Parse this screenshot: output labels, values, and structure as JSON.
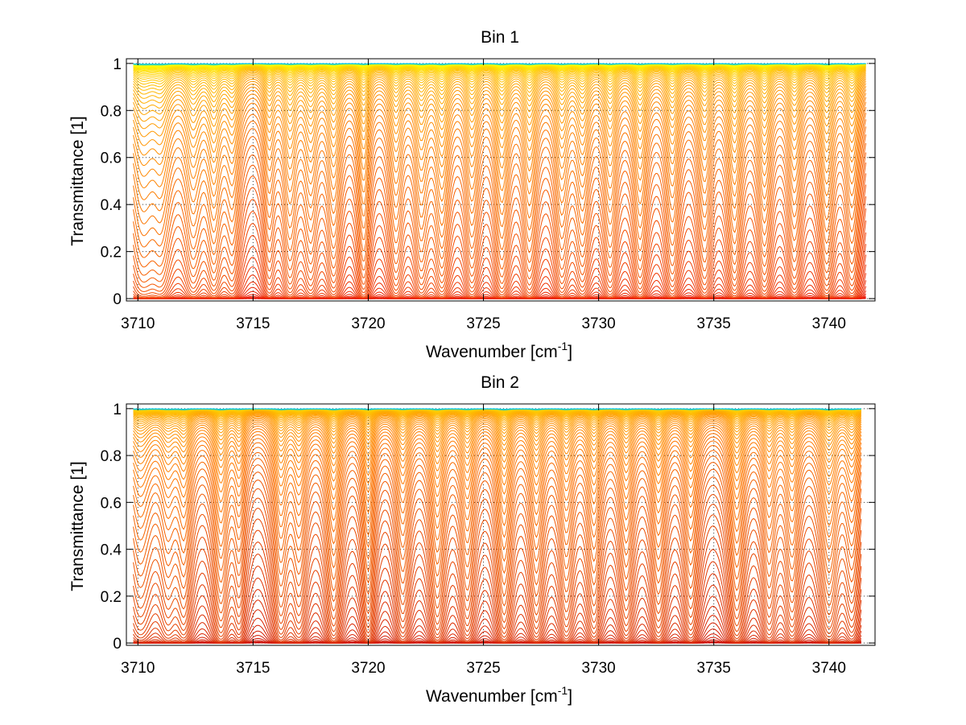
{
  "chart_data": [
    {
      "type": "line",
      "title": "Bin 1",
      "xlabel": "Wavenumber [cm",
      "xlabel_sup": "-1",
      "xlabel_end": "]",
      "ylabel": "Transmittance [1]",
      "xlim": [
        3709.5,
        3742
      ],
      "ylim": [
        -0.01,
        1.02
      ],
      "data_xrange": [
        3709.8,
        3741.6
      ],
      "xticks": [
        3710,
        3715,
        3720,
        3725,
        3730,
        3735,
        3740
      ],
      "xtick_labels": [
        "3710",
        "3715",
        "3720",
        "3725",
        "3730",
        "3735",
        "3740"
      ],
      "yticks": [
        0,
        0.2,
        0.4,
        0.6,
        0.8,
        1
      ],
      "ytick_labels": [
        "0",
        "0.2",
        "0.4",
        "0.6",
        "0.8",
        "1"
      ],
      "grid": true,
      "n_series": 70,
      "colormap": "autumn-to-cyan",
      "colors": {
        "low_transmittance": "#e60000",
        "mid": "#ff8c00",
        "high": "#ffff00",
        "saturated": "#00c8e6"
      },
      "absorption_lines": [
        {
          "x": 3710.2,
          "strength": 0.9,
          "width": 0.55
        },
        {
          "x": 3711.0,
          "strength": 0.7,
          "width": 0.4
        },
        {
          "x": 3712.4,
          "strength": 0.75,
          "width": 0.35
        },
        {
          "x": 3713.3,
          "strength": 0.8,
          "width": 0.3
        },
        {
          "x": 3714.1,
          "strength": 0.6,
          "width": 0.3
        },
        {
          "x": 3715.7,
          "strength": 0.5,
          "width": 0.25
        },
        {
          "x": 3716.6,
          "strength": 0.7,
          "width": 0.3
        },
        {
          "x": 3717.5,
          "strength": 0.6,
          "width": 0.3
        },
        {
          "x": 3718.5,
          "strength": 0.7,
          "width": 0.3
        },
        {
          "x": 3719.8,
          "strength": 0.75,
          "width": 0.25
        },
        {
          "x": 3721.2,
          "strength": 0.65,
          "width": 0.3
        },
        {
          "x": 3722.3,
          "strength": 0.7,
          "width": 0.3
        },
        {
          "x": 3723.2,
          "strength": 0.8,
          "width": 0.3
        },
        {
          "x": 3724.5,
          "strength": 0.7,
          "width": 0.3
        },
        {
          "x": 3725.8,
          "strength": 0.85,
          "width": 0.3
        },
        {
          "x": 3727.0,
          "strength": 0.75,
          "width": 0.3
        },
        {
          "x": 3728.4,
          "strength": 0.7,
          "width": 0.3
        },
        {
          "x": 3729.3,
          "strength": 0.65,
          "width": 0.3
        },
        {
          "x": 3730.5,
          "strength": 0.7,
          "width": 0.3
        },
        {
          "x": 3731.8,
          "strength": 0.75,
          "width": 0.3
        },
        {
          "x": 3733.2,
          "strength": 0.7,
          "width": 0.3
        },
        {
          "x": 3734.6,
          "strength": 0.65,
          "width": 0.3
        },
        {
          "x": 3735.9,
          "strength": 0.8,
          "width": 0.3
        },
        {
          "x": 3737.2,
          "strength": 0.7,
          "width": 0.3
        },
        {
          "x": 3738.5,
          "strength": 0.65,
          "width": 0.3
        },
        {
          "x": 3739.9,
          "strength": 0.8,
          "width": 0.3
        },
        {
          "x": 3741.0,
          "strength": 0.7,
          "width": 0.3
        }
      ]
    },
    {
      "type": "line",
      "title": "Bin 2",
      "xlabel": "Wavenumber [cm",
      "xlabel_sup": "-1",
      "xlabel_end": "]",
      "ylabel": "Transmittance [1]",
      "xlim": [
        3709.5,
        3742
      ],
      "ylim": [
        -0.01,
        1.02
      ],
      "data_xrange": [
        3709.8,
        3741.4
      ],
      "xticks": [
        3710,
        3715,
        3720,
        3725,
        3730,
        3735,
        3740
      ],
      "xtick_labels": [
        "3710",
        "3715",
        "3720",
        "3725",
        "3730",
        "3735",
        "3740"
      ],
      "yticks": [
        0,
        0.2,
        0.4,
        0.6,
        0.8,
        1
      ],
      "ytick_labels": [
        "0",
        "0.2",
        "0.4",
        "0.6",
        "0.8",
        "1"
      ],
      "grid": true,
      "n_series": 70,
      "colormap": "autumn-to-cyan",
      "colors": {
        "low_transmittance": "#c80000",
        "mid": "#ff7800",
        "high": "#ffd200",
        "saturated": "#00c8e6"
      },
      "absorption_lines": [
        {
          "x": 3710.1,
          "strength": 0.7,
          "width": 0.5
        },
        {
          "x": 3711.3,
          "strength": 0.55,
          "width": 0.35
        },
        {
          "x": 3712.0,
          "strength": 0.7,
          "width": 0.3
        },
        {
          "x": 3713.6,
          "strength": 0.85,
          "width": 0.3
        },
        {
          "x": 3714.4,
          "strength": 0.5,
          "width": 0.25
        },
        {
          "x": 3716.2,
          "strength": 0.75,
          "width": 0.3
        },
        {
          "x": 3717.0,
          "strength": 0.6,
          "width": 0.3
        },
        {
          "x": 3718.5,
          "strength": 0.85,
          "width": 0.3
        },
        {
          "x": 3720.0,
          "strength": 0.75,
          "width": 0.25
        },
        {
          "x": 3721.5,
          "strength": 0.65,
          "width": 0.3
        },
        {
          "x": 3723.0,
          "strength": 0.8,
          "width": 0.3
        },
        {
          "x": 3724.3,
          "strength": 0.7,
          "width": 0.3
        },
        {
          "x": 3725.9,
          "strength": 0.9,
          "width": 0.3
        },
        {
          "x": 3727.3,
          "strength": 0.75,
          "width": 0.3
        },
        {
          "x": 3728.6,
          "strength": 0.7,
          "width": 0.3
        },
        {
          "x": 3729.8,
          "strength": 0.75,
          "width": 0.3
        },
        {
          "x": 3731.2,
          "strength": 0.7,
          "width": 0.3
        },
        {
          "x": 3732.6,
          "strength": 0.75,
          "width": 0.3
        },
        {
          "x": 3734.0,
          "strength": 0.7,
          "width": 0.3
        },
        {
          "x": 3736.0,
          "strength": 0.85,
          "width": 0.3
        },
        {
          "x": 3737.4,
          "strength": 0.65,
          "width": 0.3
        },
        {
          "x": 3738.4,
          "strength": 0.7,
          "width": 0.3
        },
        {
          "x": 3740.0,
          "strength": 0.9,
          "width": 0.35
        },
        {
          "x": 3741.0,
          "strength": 0.6,
          "width": 0.3
        }
      ]
    }
  ]
}
